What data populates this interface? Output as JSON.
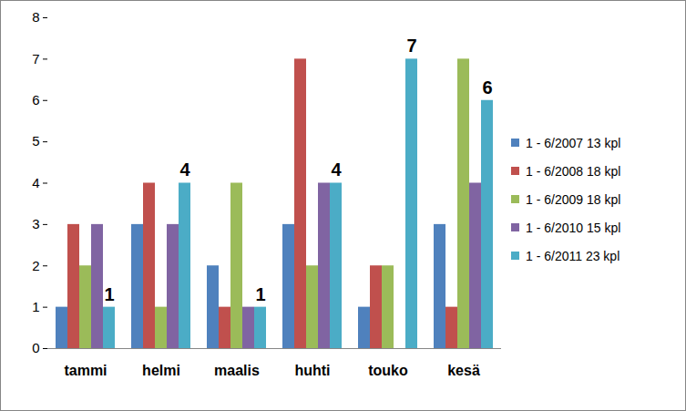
{
  "chart_data": {
    "type": "bar",
    "categories": [
      "tammi",
      "helmi",
      "maalis",
      "huhti",
      "touko",
      "kesä"
    ],
    "series": [
      {
        "name": "1 - 6/2007 13 kpl",
        "color": "#4f81bd",
        "values": [
          1,
          3,
          2,
          3,
          1,
          3
        ]
      },
      {
        "name": "1 - 6/2008 18 kpl",
        "color": "#c0504d",
        "values": [
          3,
          4,
          1,
          7,
          2,
          1
        ]
      },
      {
        "name": "1 - 6/2009 18 kpl",
        "color": "#9bbb59",
        "values": [
          2,
          1,
          4,
          2,
          2,
          7
        ]
      },
      {
        "name": "1 - 6/2010 15 kpl",
        "color": "#8064a2",
        "values": [
          3,
          3,
          1,
          4,
          0,
          4
        ]
      },
      {
        "name": "1 - 6/2011 23 kpl",
        "color": "#4bacc6",
        "values": [
          1,
          4,
          1,
          4,
          7,
          6
        ],
        "data_labels": true
      }
    ],
    "ylim": [
      0,
      8
    ],
    "yticks": [
      0,
      1,
      2,
      3,
      4,
      5,
      6,
      7,
      8
    ],
    "grid": false,
    "legend": "right"
  }
}
